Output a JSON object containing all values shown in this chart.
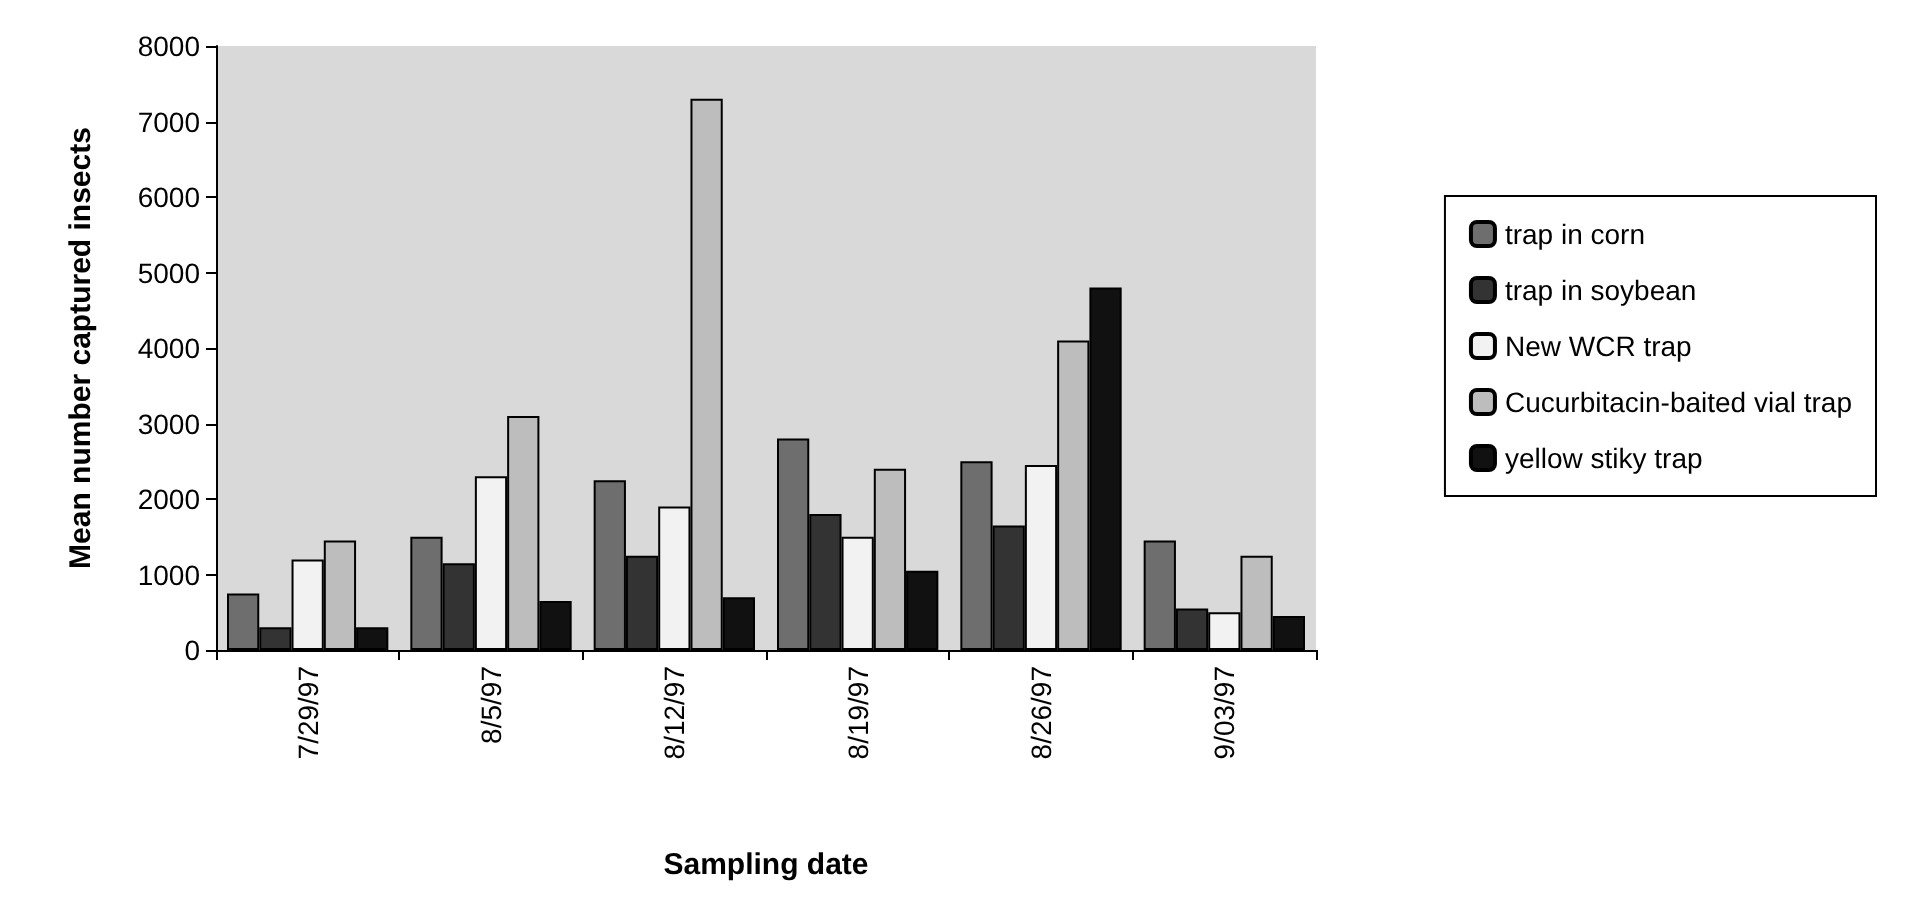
{
  "chart_data": {
    "type": "bar",
    "xlabel": "Sampling date",
    "ylabel": "Mean number captured insects",
    "categories": [
      "7/29/97",
      "8/5/97",
      "8/12/97",
      "8/19/97",
      "8/26/97",
      "9/03/97"
    ],
    "series": [
      {
        "name": "trap in corn",
        "color": "#6e6e6e",
        "values": [
          750,
          1500,
          2250,
          2800,
          2500,
          1450
        ]
      },
      {
        "name": "trap in soybean",
        "color": "#333333",
        "values": [
          300,
          1150,
          1250,
          1800,
          1650,
          550
        ]
      },
      {
        "name": "New WCR trap",
        "color": "#f2f2f2",
        "values": [
          1200,
          2300,
          1900,
          1500,
          2450,
          500
        ]
      },
      {
        "name": "Cucurbitacin-baited vial trap",
        "color": "#bdbdbd",
        "values": [
          1450,
          3100,
          7300,
          2400,
          4100,
          1250
        ]
      },
      {
        "name": "yellow stiky trap",
        "color": "#111111",
        "values": [
          300,
          650,
          700,
          1050,
          4800,
          450
        ]
      }
    ],
    "ylim": [
      0,
      8000
    ],
    "yticks": [
      0,
      1000,
      2000,
      3000,
      4000,
      5000,
      6000,
      7000,
      8000
    ],
    "grid": false,
    "legend": "right"
  }
}
